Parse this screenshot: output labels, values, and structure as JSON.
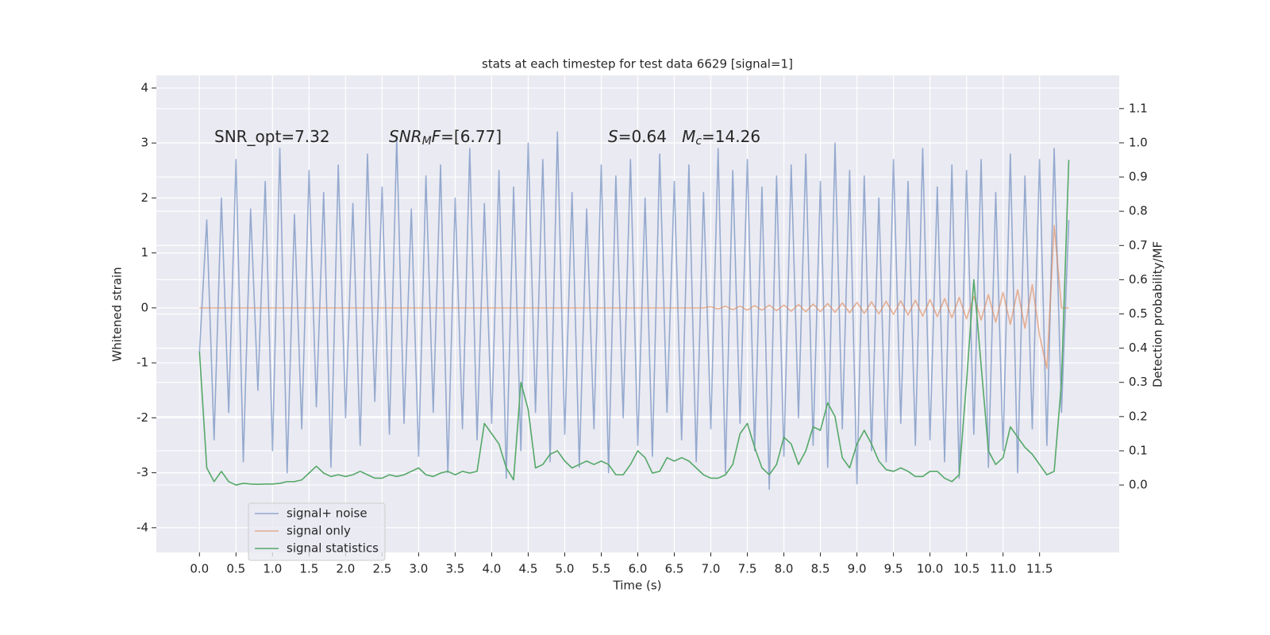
{
  "chart_data": {
    "type": "line",
    "title": "stats at each timestep for test data 6629 [signal=1]",
    "xlabel": "Time (s)",
    "ylabel": "Whitened strain",
    "y2label": "Detection probability/MF",
    "x": [
      0,
      0.1,
      0.2,
      0.3,
      0.4,
      0.5,
      0.6,
      0.7,
      0.8,
      0.9,
      1,
      1.1,
      1.2,
      1.3,
      1.4,
      1.5,
      1.6,
      1.7,
      1.8,
      1.9,
      2,
      2.1,
      2.2,
      2.3,
      2.4,
      2.5,
      2.6,
      2.7,
      2.8,
      2.9,
      3,
      3.1,
      3.2,
      3.3,
      3.4,
      3.5,
      3.6,
      3.7,
      3.8,
      3.9,
      4,
      4.1,
      4.2,
      4.3,
      4.4,
      4.5,
      4.6,
      4.7,
      4.8,
      4.9,
      5,
      5.1,
      5.2,
      5.3,
      5.4,
      5.5,
      5.6,
      5.7,
      5.8,
      5.9,
      6,
      6.1,
      6.2,
      6.3,
      6.4,
      6.5,
      6.6,
      6.7,
      6.8,
      6.9,
      7,
      7.1,
      7.2,
      7.3,
      7.4,
      7.5,
      7.6,
      7.7,
      7.8,
      7.9,
      8,
      8.1,
      8.2,
      8.3,
      8.4,
      8.5,
      8.6,
      8.7,
      8.8,
      8.9,
      9,
      9.1,
      9.2,
      9.3,
      9.4,
      9.5,
      9.6,
      9.7,
      9.8,
      9.9,
      10,
      10.1,
      10.2,
      10.3,
      10.4,
      10.5,
      10.6,
      10.7,
      10.8,
      10.9,
      11,
      11.1,
      11.2,
      11.3,
      11.4,
      11.5,
      11.6,
      11.7,
      11.8,
      11.9
    ],
    "series": [
      {
        "name": "signal+ noise",
        "color": "#4c72b0",
        "opacity": 0.55,
        "values": [
          -0.8,
          1.6,
          -2.4,
          2.0,
          -1.9,
          2.7,
          -2.8,
          1.8,
          -1.5,
          2.3,
          -2.6,
          2.9,
          -3.0,
          1.7,
          -2.2,
          2.5,
          -1.8,
          2.1,
          -2.9,
          2.6,
          -2.0,
          1.9,
          -2.5,
          2.8,
          -1.7,
          2.2,
          -2.3,
          3.1,
          -2.1,
          1.8,
          -2.7,
          2.4,
          -1.9,
          2.6,
          -3.0,
          2.0,
          -2.2,
          2.9,
          -2.4,
          1.9,
          -2.1,
          2.5,
          -3.1,
          2.2,
          -2.6,
          3.0,
          -1.9,
          2.7,
          -2.8,
          3.2,
          -2.3,
          2.1,
          -2.9,
          1.8,
          -2.2,
          2.6,
          -3.0,
          2.4,
          -2.0,
          2.7,
          -2.5,
          2.0,
          -2.7,
          2.8,
          -1.9,
          2.3,
          -2.4,
          2.6,
          -2.8,
          2.1,
          -2.2,
          2.9,
          -3.0,
          2.5,
          -2.1,
          2.7,
          -2.6,
          2.2,
          -3.3,
          2.4,
          -2.7,
          2.6,
          -2.0,
          2.8,
          -2.5,
          2.3,
          -2.9,
          3.0,
          -2.2,
          2.5,
          -3.2,
          2.4,
          -2.6,
          2.0,
          -2.8,
          2.7,
          -2.1,
          2.3,
          -2.5,
          2.9,
          -2.4,
          2.2,
          -2.8,
          2.6,
          -3.1,
          2.5,
          -2.3,
          2.7,
          -2.9,
          2.1,
          -2.6,
          2.8,
          -3.0,
          2.4,
          -2.2,
          2.7,
          -2.5,
          2.9,
          -1.9,
          1.6
        ]
      },
      {
        "name": "signal only",
        "color": "#dd8452",
        "opacity": 0.6,
        "values": [
          0,
          0,
          0,
          0,
          0,
          0,
          0,
          0,
          0,
          0,
          0,
          0,
          0,
          0,
          0,
          0,
          0,
          0,
          0,
          0,
          0,
          0,
          0,
          0,
          0,
          0,
          0,
          0,
          0,
          0,
          0,
          0,
          0,
          0,
          0,
          0,
          0,
          0,
          0,
          0,
          0,
          0,
          0,
          0,
          0,
          0,
          0,
          0,
          0,
          0,
          0,
          0,
          0,
          0,
          0,
          0,
          0,
          0,
          0,
          0,
          0,
          0,
          0,
          0,
          0,
          0,
          0,
          0,
          0,
          0,
          0.02,
          -0.02,
          0.03,
          -0.03,
          0.03,
          -0.04,
          0.04,
          -0.04,
          0.05,
          -0.05,
          0.05,
          -0.06,
          0.06,
          -0.07,
          0.07,
          -0.07,
          0.08,
          -0.08,
          0.09,
          -0.09,
          0.1,
          -0.1,
          0.11,
          -0.11,
          0.12,
          -0.12,
          0.13,
          -0.13,
          0.14,
          -0.15,
          0.15,
          -0.16,
          0.17,
          -0.18,
          0.19,
          -0.2,
          0.21,
          -0.22,
          0.24,
          -0.26,
          0.28,
          -0.3,
          0.33,
          -0.37,
          0.42,
          -0.5,
          -1.1,
          1.5,
          0,
          0
        ]
      },
      {
        "name": "signal statistics",
        "color": "#55a868",
        "opacity": 1,
        "axis": "y2",
        "values": [
          0.39,
          0.05,
          0.01,
          0.04,
          0.01,
          0.0,
          0.005,
          0.003,
          0.002,
          0.003,
          0.003,
          0.005,
          0.01,
          0.01,
          0.015,
          0.035,
          0.055,
          0.035,
          0.025,
          0.03,
          0.025,
          0.03,
          0.04,
          0.03,
          0.02,
          0.02,
          0.03,
          0.025,
          0.03,
          0.04,
          0.05,
          0.03,
          0.025,
          0.035,
          0.04,
          0.03,
          0.04,
          0.035,
          0.04,
          0.18,
          0.15,
          0.12,
          0.05,
          0.015,
          0.3,
          0.22,
          0.05,
          0.06,
          0.09,
          0.1,
          0.07,
          0.05,
          0.06,
          0.07,
          0.06,
          0.07,
          0.06,
          0.03,
          0.03,
          0.06,
          0.1,
          0.08,
          0.035,
          0.04,
          0.08,
          0.07,
          0.08,
          0.07,
          0.05,
          0.03,
          0.02,
          0.02,
          0.03,
          0.06,
          0.15,
          0.18,
          0.11,
          0.05,
          0.03,
          0.06,
          0.14,
          0.12,
          0.06,
          0.1,
          0.17,
          0.16,
          0.24,
          0.2,
          0.08,
          0.05,
          0.12,
          0.16,
          0.12,
          0.07,
          0.045,
          0.04,
          0.05,
          0.04,
          0.025,
          0.025,
          0.04,
          0.04,
          0.02,
          0.01,
          0.03,
          0.3,
          0.6,
          0.35,
          0.1,
          0.06,
          0.08,
          0.17,
          0.14,
          0.11,
          0.09,
          0.06,
          0.03,
          0.04,
          0.3,
          0.95
        ]
      }
    ],
    "xlim": [
      -0.59,
      12.59
    ],
    "ylim": [
      -4.45,
      4.23
    ],
    "y2lim": [
      -0.197,
      1.197
    ],
    "xticks": [
      {
        "value": 0,
        "label": "0.0"
      },
      0.5,
      {
        "value": 1,
        "label": "1.0"
      },
      1.5,
      {
        "value": 2,
        "label": "2.0"
      },
      2.5,
      {
        "value": 3,
        "label": "3.0"
      },
      3.5,
      {
        "value": 4,
        "label": "4.0"
      },
      4.5,
      {
        "value": 5,
        "label": "5.0"
      },
      5.5,
      {
        "value": 6,
        "label": "6.0"
      },
      6.5,
      {
        "value": 7,
        "label": "7.0"
      },
      7.5,
      {
        "value": 8,
        "label": "8.0"
      },
      8.5,
      {
        "value": 9,
        "label": "9.0"
      },
      9.5,
      {
        "value": 10,
        "label": "10.0"
      },
      10.5,
      {
        "value": 11,
        "label": "11.0"
      },
      11.5
    ],
    "yticks": [
      -4,
      -3,
      -2,
      -1,
      0,
      1,
      2,
      3,
      4
    ],
    "y2ticks": [
      {
        "value": 0,
        "label": "0.0"
      },
      0.1,
      0.2,
      0.3,
      0.4,
      0.5,
      0.6,
      0.7,
      0.8,
      0.9,
      {
        "value": 1,
        "label": "1.0"
      },
      1.1
    ],
    "grid": true,
    "legend": "lower left",
    "annotations": [
      {
        "parts": [
          {
            "text": "SNR_opt=7.32"
          }
        ]
      },
      {
        "parts": [
          {
            "text": "SNR",
            "italic": true
          },
          {
            "text": "M",
            "italic": true,
            "sub": true
          },
          {
            "text": "F",
            "italic": true
          },
          {
            "text": "=[6.77]"
          }
        ]
      },
      {
        "parts": [
          {
            "text": "S",
            "italic": true
          },
          {
            "text": "=0.64   "
          },
          {
            "text": "M",
            "italic": true
          },
          {
            "text": "c",
            "italic": true,
            "sub": true
          },
          {
            "text": "=14.26"
          }
        ]
      }
    ]
  }
}
